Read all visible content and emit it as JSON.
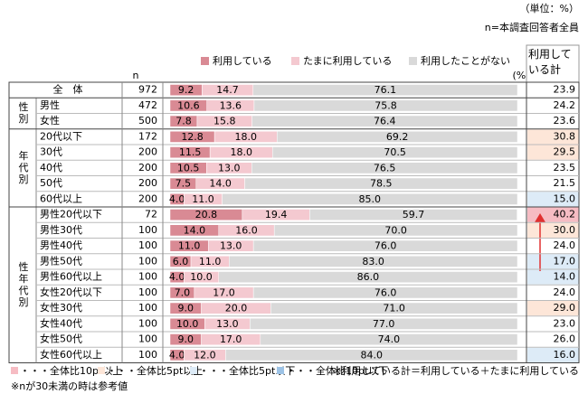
{
  "chart_data": {
    "type": "stacked-bar-table",
    "unit_note": "（単位：%）",
    "base_note": "n=本調査回答者全員",
    "n_header": "n",
    "percent_label": "(%)",
    "total_header": "利用している計",
    "groups": [
      {
        "label": null,
        "categories": [
          "全　体"
        ]
      },
      {
        "label": "性別",
        "categories": [
          "男性",
          "女性"
        ]
      },
      {
        "label": "年代別",
        "categories": [
          "20代以下",
          "30代",
          "40代",
          "50代",
          "60代以上"
        ]
      },
      {
        "label": "性年代別",
        "categories": [
          "男性20代以下",
          "男性30代",
          "男性40代",
          "男性50代",
          "男性60代以上",
          "女性20代以下",
          "女性30代",
          "女性40代",
          "女性50代",
          "女性60代以上"
        ]
      }
    ],
    "n": [
      972,
      472,
      500,
      172,
      200,
      200,
      200,
      200,
      72,
      100,
      100,
      100,
      100,
      100,
      100,
      100,
      100,
      100
    ],
    "series": [
      {
        "name": "利用している",
        "color": "#d98a94",
        "values": [
          9.2,
          10.6,
          7.8,
          12.8,
          11.5,
          10.5,
          7.5,
          4.0,
          20.8,
          14.0,
          11.0,
          6.0,
          4.0,
          7.0,
          9.0,
          10.0,
          9.0,
          4.0
        ],
        "value_labels": [
          "9.2",
          "10.6",
          "7.8",
          "12.8",
          "11.5",
          "10.5",
          "7.5",
          "4.0",
          "20.8",
          "14.0",
          "11.0",
          "6.0",
          "4.0",
          "7.0",
          "9.0",
          "10.0",
          "9.0",
          "4.0"
        ]
      },
      {
        "name": "たまに利用している",
        "color": "#f4c9d0",
        "values": [
          14.7,
          13.6,
          15.8,
          18.0,
          18.0,
          13.0,
          14.0,
          11.0,
          19.4,
          16.0,
          13.0,
          11.0,
          10.0,
          17.0,
          20.0,
          13.0,
          17.0,
          12.0
        ],
        "value_labels": [
          "14.7",
          "13.6",
          "15.8",
          "18.0",
          "18.0",
          "13.0",
          "14.0",
          "11.0",
          "19.4",
          "16.0",
          "13.0",
          "11.0",
          "10.0",
          "17.0",
          "20.0",
          "13.0",
          "17.0",
          "12.0"
        ]
      },
      {
        "name": "利用したことがない",
        "color": "#d9d9d9",
        "values": [
          76.1,
          75.8,
          76.4,
          69.2,
          70.5,
          76.5,
          78.5,
          85.0,
          59.7,
          70.0,
          76.0,
          83.0,
          86.0,
          76.0,
          71.0,
          77.0,
          74.0,
          84.0
        ],
        "value_labels": [
          "76.1",
          "75.8",
          "76.4",
          "69.2",
          "70.5",
          "76.5",
          "78.5",
          "85.0",
          "59.7",
          "70.0",
          "76.0",
          "83.0",
          "86.0",
          "76.0",
          "71.0",
          "77.0",
          "74.0",
          "84.0"
        ]
      }
    ],
    "totals": {
      "values": [
        23.9,
        24.2,
        23.6,
        30.8,
        29.5,
        23.5,
        21.5,
        15.0,
        40.2,
        30.0,
        24.0,
        17.0,
        14.0,
        24.0,
        29.0,
        23.0,
        26.0,
        16.0
      ],
      "value_labels": [
        "23.9",
        "24.2",
        "23.6",
        "30.8",
        "29.5",
        "23.5",
        "21.5",
        "15.0",
        "40.2",
        "30.0",
        "24.0",
        "17.0",
        "14.0",
        "24.0",
        "29.0",
        "23.0",
        "26.0",
        "16.0"
      ],
      "highlight": [
        null,
        null,
        null,
        1,
        1,
        null,
        null,
        2,
        0,
        1,
        null,
        2,
        2,
        null,
        1,
        null,
        null,
        2
      ]
    },
    "highlight_keys": [
      {
        "label": "・・・全体比10pt以上",
        "color": "#f6bcc3"
      },
      {
        "label": "・・・全体比5pt以上",
        "color": "#fde6d8"
      },
      {
        "label": "・・・全体比5pt以下",
        "color": "#ddebf7"
      },
      {
        "label": "・・・全体比10pt以下",
        "color": "#9dc3e6"
      }
    ],
    "notes": [
      "※利用している計＝利用している＋たまに利用している",
      "※nが30未満の時は参考値"
    ]
  }
}
